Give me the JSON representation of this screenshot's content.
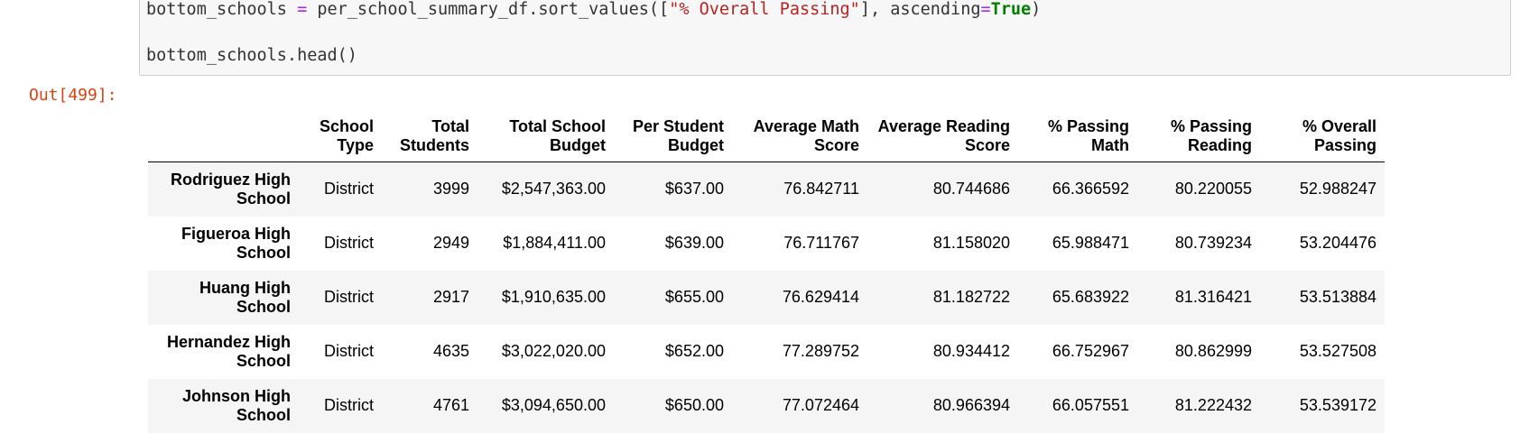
{
  "code": {
    "line1": {
      "var": "bottom_schools ",
      "eq": "=",
      "call": " per_school_summary_df.sort_values([",
      "str": "\"% Overall Passing\"",
      "mid": "], ascending",
      "eq2": "=",
      "kw": "True",
      "end": ")"
    },
    "line2": "bottom_schools.head()"
  },
  "output": {
    "prompt": "Out[499]:"
  },
  "table": {
    "columns": [
      [
        "School",
        "Type"
      ],
      [
        "Total",
        "Students"
      ],
      [
        "Total School",
        "Budget"
      ],
      [
        "Per Student",
        "Budget"
      ],
      [
        "Average Math",
        "Score"
      ],
      [
        "Average Reading",
        "Score"
      ],
      [
        "% Passing",
        "Math"
      ],
      [
        "% Passing",
        "Reading"
      ],
      [
        "% Overall",
        "Passing"
      ]
    ],
    "rows": [
      {
        "index": [
          "Rodriguez High",
          "School"
        ],
        "values": [
          "District",
          "3999",
          "$2,547,363.00",
          "$637.00",
          "76.842711",
          "80.744686",
          "66.366592",
          "80.220055",
          "52.988247"
        ]
      },
      {
        "index": [
          "Figueroa High",
          "School"
        ],
        "values": [
          "District",
          "2949",
          "$1,884,411.00",
          "$639.00",
          "76.711767",
          "81.158020",
          "65.988471",
          "80.739234",
          "53.204476"
        ]
      },
      {
        "index": [
          "Huang High",
          "School"
        ],
        "values": [
          "District",
          "2917",
          "$1,910,635.00",
          "$655.00",
          "76.629414",
          "81.182722",
          "65.683922",
          "81.316421",
          "53.513884"
        ]
      },
      {
        "index": [
          "Hernandez High",
          "School"
        ],
        "values": [
          "District",
          "4635",
          "$3,022,020.00",
          "$652.00",
          "77.289752",
          "80.934412",
          "66.752967",
          "80.862999",
          "53.527508"
        ]
      },
      {
        "index": [
          "Johnson High",
          "School"
        ],
        "values": [
          "District",
          "4761",
          "$3,094,650.00",
          "$650.00",
          "77.072464",
          "80.966394",
          "66.057551",
          "81.222432",
          "53.539172"
        ]
      }
    ]
  }
}
